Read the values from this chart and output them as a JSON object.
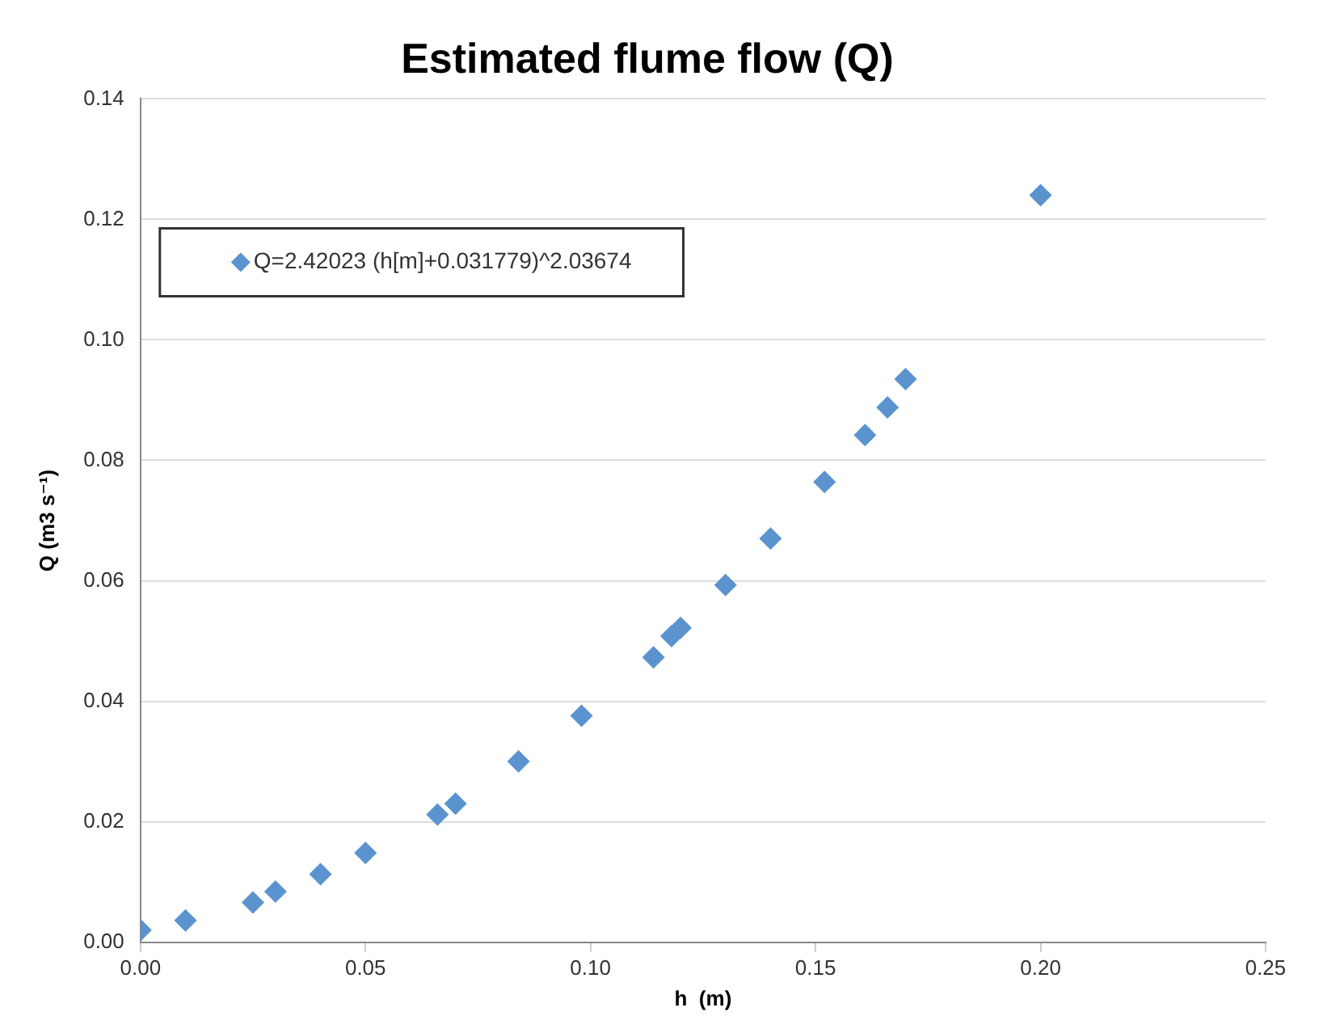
{
  "chart_data": {
    "type": "scatter",
    "title": "Estimated flume flow (Q)",
    "xlabel": "h  (m)",
    "ylabel": "Q (m3 s⁻¹)",
    "x": [
      0,
      0.01,
      0.025,
      0.03,
      0.04,
      0.05,
      0.066,
      0.07,
      0.084,
      0.098,
      0.114,
      0.118,
      0.12,
      0.13,
      0.14,
      0.152,
      0.161,
      0.166,
      0.17,
      0.2
    ],
    "series": [
      {
        "name": "Q=2.42023 (h[m]+0.031779)^2.03674",
        "color": "#5b93cf",
        "values": [
          0.002,
          0.0036,
          0.0066,
          0.0084,
          0.0113,
          0.0148,
          0.0212,
          0.023,
          0.03,
          0.0376,
          0.0473,
          0.0508,
          0.0522,
          0.0593,
          0.067,
          0.0764,
          0.0842,
          0.0888,
          0.0935,
          0.124
        ]
      }
    ],
    "xlim": [
      0,
      0.25
    ],
    "xticks": [
      {
        "value": 0,
        "label": "0.00"
      },
      {
        "value": 0.05,
        "label": "0.05"
      },
      {
        "value": 0.1,
        "label": "0.10"
      },
      {
        "value": 0.15,
        "label": "0.15"
      },
      {
        "value": 0.2,
        "label": "0.20"
      },
      {
        "value": 0.25,
        "label": "0.25"
      }
    ],
    "ylim": [
      0,
      0.14
    ],
    "yticks": [
      {
        "value": 0,
        "label": "0.00"
      },
      {
        "value": 0.02,
        "label": "0.02"
      },
      {
        "value": 0.04,
        "label": "0.04"
      },
      {
        "value": 0.06,
        "label": "0.06"
      },
      {
        "value": 0.08,
        "label": "0.08"
      },
      {
        "value": 0.1,
        "label": "0.10"
      },
      {
        "value": 0.12,
        "label": "0.12"
      },
      {
        "value": 0.14,
        "label": "0.14"
      }
    ],
    "grid": "y",
    "legend": "top left",
    "marker": "diamond"
  }
}
